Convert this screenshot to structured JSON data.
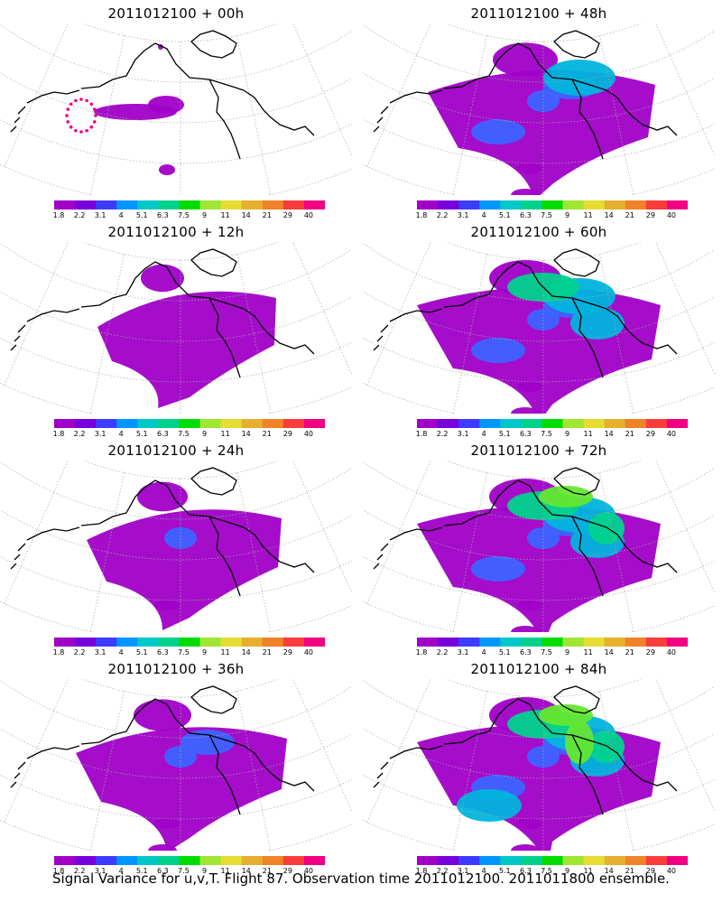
{
  "panels": [
    {
      "title": "2011012100  +  00h",
      "stage": 0
    },
    {
      "title": "2011012100  +  48h",
      "stage": 4
    },
    {
      "title": "2011012100  +  12h",
      "stage": 1
    },
    {
      "title": "2011012100  +  60h",
      "stage": 5
    },
    {
      "title": "2011012100  +  24h",
      "stage": 2
    },
    {
      "title": "2011012100  +  72h",
      "stage": 6
    },
    {
      "title": "2011012100  +  36h",
      "stage": 3
    },
    {
      "title": "2011012100  +  84h",
      "stage": 7
    }
  ],
  "colorbar": {
    "labels": [
      "1.8",
      "2.2",
      "3.1",
      "4",
      "5.1",
      "6.3",
      "7.5",
      "9",
      "11",
      "14",
      "21",
      "29",
      "40"
    ],
    "colors": [
      "#a000c8",
      "#7800dc",
      "#3c3cff",
      "#0096ff",
      "#00c8c8",
      "#00d28c",
      "#00dc00",
      "#a0e632",
      "#e6dc32",
      "#e6af2d",
      "#f08228",
      "#fa3c3c",
      "#f00082"
    ]
  },
  "caption": "Signal Variance for u,v,T. Flight 87. Observation time 2011012100. 2011011800 ensemble."
}
